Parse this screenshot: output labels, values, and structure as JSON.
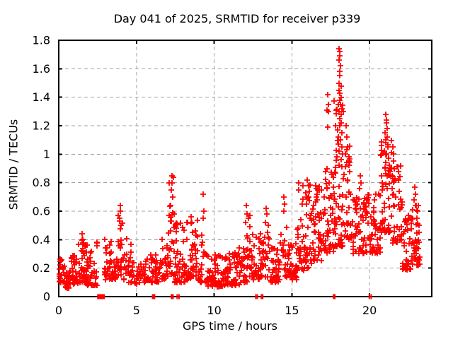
{
  "chart_data": {
    "type": "scatter",
    "title": "Day 041 of 2025, SRMTID for receiver p339",
    "xlabel": "GPS time / hours",
    "ylabel": "SRMTID / TECUs",
    "xlim": [
      0,
      24
    ],
    "ylim": [
      0,
      1.8
    ],
    "xticks": [
      0,
      5,
      10,
      15,
      20
    ],
    "xtick_labels": [
      "0",
      "5",
      "10",
      "15",
      "20"
    ],
    "yticks": [
      0,
      0.2,
      0.4,
      0.6,
      0.8,
      1.0,
      1.2,
      1.4,
      1.6,
      1.8
    ],
    "ytick_labels": [
      "0",
      "0.2",
      "0.4",
      "0.6",
      "0.8",
      "1",
      "1.2",
      "1.4",
      "1.6",
      "1.8"
    ],
    "grid": true,
    "legend": false,
    "marker": "plus",
    "marker_color": "#ff0000",
    "grid_color": "#a0a0a0",
    "axis_color": "#000000",
    "series_name": "SRMTID",
    "seed": 20250041,
    "outlier_points": [
      [
        1.52,
        0.44
      ],
      [
        1.55,
        0.4
      ],
      [
        3.95,
        0.64
      ],
      [
        3.97,
        0.6
      ],
      [
        3.92,
        0.55
      ],
      [
        4.02,
        0.5
      ],
      [
        7.28,
        0.85
      ],
      [
        7.36,
        0.84
      ],
      [
        7.3,
        0.8
      ],
      [
        7.25,
        0.75
      ],
      [
        7.33,
        0.7
      ],
      [
        7.2,
        0.64
      ],
      [
        8.52,
        0.56
      ],
      [
        8.56,
        0.52
      ],
      [
        9.3,
        0.72
      ],
      [
        9.33,
        0.6
      ],
      [
        9.27,
        0.55
      ],
      [
        12.05,
        0.64
      ],
      [
        12.1,
        0.58
      ],
      [
        12.0,
        0.52
      ],
      [
        13.35,
        0.62
      ],
      [
        13.38,
        0.58
      ],
      [
        13.3,
        0.52
      ],
      [
        14.5,
        0.7
      ],
      [
        14.53,
        0.65
      ],
      [
        14.47,
        0.6
      ],
      [
        15.45,
        0.8
      ],
      [
        15.42,
        0.75
      ],
      [
        16.0,
        0.82
      ],
      [
        16.06,
        0.78
      ],
      [
        16.12,
        0.74
      ],
      [
        15.95,
        0.7
      ],
      [
        16.55,
        0.78
      ],
      [
        16.6,
        0.72
      ],
      [
        17.3,
        1.42
      ],
      [
        17.34,
        1.35
      ],
      [
        17.27,
        1.31
      ],
      [
        17.36,
        1.3
      ],
      [
        17.32,
        1.19
      ],
      [
        18.05,
        1.74
      ],
      [
        18.08,
        1.72
      ],
      [
        18.1,
        1.69
      ],
      [
        18.04,
        1.66
      ],
      [
        18.12,
        1.62
      ],
      [
        18.07,
        1.58
      ],
      [
        18.1,
        1.55
      ],
      [
        18.05,
        1.5
      ],
      [
        18.15,
        1.48
      ],
      [
        18.02,
        1.45
      ],
      [
        18.1,
        1.43
      ],
      [
        18.18,
        1.4
      ],
      [
        18.06,
        1.38
      ],
      [
        18.12,
        1.35
      ],
      [
        18.2,
        1.32
      ],
      [
        18.03,
        1.3
      ],
      [
        18.15,
        1.28
      ],
      [
        18.08,
        1.25
      ],
      [
        18.18,
        1.22
      ],
      [
        18.1,
        1.2
      ],
      [
        17.95,
        1.17
      ],
      [
        18.22,
        1.15
      ],
      [
        18.0,
        1.12
      ],
      [
        18.14,
        1.1
      ],
      [
        17.97,
        1.07
      ],
      [
        18.2,
        1.05
      ],
      [
        18.05,
        1.02
      ],
      [
        18.25,
        1.0
      ],
      [
        17.92,
        0.98
      ],
      [
        18.16,
        0.96
      ],
      [
        18.5,
        1.2
      ],
      [
        18.55,
        1.12
      ],
      [
        18.6,
        1.05
      ],
      [
        18.45,
        1.0
      ],
      [
        18.65,
        0.95
      ],
      [
        18.7,
        0.88
      ],
      [
        19.4,
        0.85
      ],
      [
        19.45,
        0.8
      ],
      [
        19.37,
        0.76
      ],
      [
        20.75,
        0.85
      ],
      [
        20.8,
        0.8
      ],
      [
        21.05,
        1.28
      ],
      [
        21.1,
        1.24
      ],
      [
        21.08,
        1.22
      ],
      [
        21.15,
        1.18
      ],
      [
        21.0,
        1.15
      ],
      [
        21.12,
        1.12
      ],
      [
        21.05,
        1.08
      ],
      [
        21.18,
        1.05
      ],
      [
        20.95,
        1.02
      ],
      [
        21.1,
        1.0
      ],
      [
        21.2,
        0.97
      ],
      [
        21.02,
        0.94
      ],
      [
        21.25,
        0.92
      ],
      [
        21.3,
        0.88
      ],
      [
        21.5,
        1.05
      ],
      [
        21.55,
        1.0
      ],
      [
        21.52,
        0.95
      ],
      [
        21.6,
        0.9
      ],
      [
        22.9,
        0.77
      ],
      [
        22.95,
        0.72
      ],
      [
        22.85,
        0.68
      ],
      [
        23.0,
        0.64
      ],
      [
        23.1,
        0.6
      ]
    ],
    "density_clusters": [
      [
        0.0,
        0.35,
        0.1,
        0.28,
        22,
        1.5
      ],
      [
        0.35,
        0.8,
        0.06,
        0.2,
        28,
        1.4
      ],
      [
        0.8,
        1.25,
        0.09,
        0.3,
        32,
        1.6
      ],
      [
        1.25,
        1.8,
        0.1,
        0.4,
        40,
        1.8
      ],
      [
        1.8,
        2.5,
        0.08,
        0.38,
        40,
        1.9
      ],
      [
        2.95,
        3.4,
        0.12,
        0.42,
        30,
        1.7
      ],
      [
        3.4,
        3.8,
        0.12,
        0.28,
        18,
        1.5
      ],
      [
        3.8,
        4.15,
        0.15,
        0.58,
        22,
        1.7
      ],
      [
        4.15,
        4.7,
        0.1,
        0.42,
        25,
        2.0
      ],
      [
        4.7,
        5.6,
        0.09,
        0.24,
        32,
        1.3
      ],
      [
        5.6,
        6.6,
        0.1,
        0.3,
        45,
        1.7
      ],
      [
        6.6,
        7.05,
        0.12,
        0.45,
        25,
        1.7
      ],
      [
        7.05,
        7.45,
        0.15,
        0.8,
        30,
        2.1
      ],
      [
        7.45,
        8.2,
        0.1,
        0.52,
        50,
        2.0
      ],
      [
        8.2,
        9.0,
        0.12,
        0.55,
        48,
        2.0
      ],
      [
        9.0,
        9.6,
        0.1,
        0.45,
        26,
        1.8
      ],
      [
        9.6,
        10.6,
        0.07,
        0.3,
        58,
        1.6
      ],
      [
        10.6,
        11.6,
        0.08,
        0.32,
        58,
        1.6
      ],
      [
        11.6,
        12.1,
        0.1,
        0.35,
        30,
        1.6
      ],
      [
        12.1,
        12.45,
        0.14,
        0.58,
        22,
        1.7
      ],
      [
        12.45,
        13.0,
        0.12,
        0.45,
        30,
        1.8
      ],
      [
        13.0,
        13.6,
        0.14,
        0.6,
        30,
        1.9
      ],
      [
        13.6,
        14.3,
        0.1,
        0.38,
        36,
        1.6
      ],
      [
        14.3,
        14.85,
        0.14,
        0.55,
        26,
        1.8
      ],
      [
        14.85,
        15.3,
        0.12,
        0.4,
        28,
        1.6
      ],
      [
        15.3,
        15.75,
        0.18,
        0.78,
        26,
        1.8
      ],
      [
        15.75,
        16.25,
        0.2,
        0.8,
        35,
        1.8
      ],
      [
        16.25,
        17.0,
        0.25,
        0.78,
        48,
        1.5
      ],
      [
        17.0,
        17.7,
        0.3,
        0.92,
        48,
        1.5
      ],
      [
        17.7,
        18.35,
        0.35,
        1.4,
        55,
        1.8
      ],
      [
        18.35,
        18.9,
        0.4,
        1.1,
        30,
        1.5
      ],
      [
        18.9,
        19.9,
        0.3,
        0.7,
        58,
        1.5
      ],
      [
        19.9,
        20.7,
        0.3,
        0.72,
        48,
        1.5
      ],
      [
        20.7,
        21.45,
        0.45,
        1.12,
        52,
        1.4
      ],
      [
        21.45,
        22.1,
        0.35,
        0.92,
        45,
        1.6
      ],
      [
        22.1,
        22.7,
        0.18,
        0.58,
        42,
        1.5
      ],
      [
        22.7,
        23.25,
        0.22,
        0.65,
        40,
        1.5
      ]
    ],
    "zero_markers": [
      [
        2.72,
        0.5
      ],
      [
        6.1,
        0.22
      ],
      [
        7.3,
        0.2
      ],
      [
        7.62,
        0.07
      ],
      [
        7.74,
        0.07
      ],
      [
        12.68,
        0.07
      ],
      [
        12.78,
        0.07
      ],
      [
        13.08,
        0.18
      ],
      [
        17.72,
        0.18
      ],
      [
        19.98,
        0.07
      ],
      [
        20.1,
        0.07
      ]
    ]
  }
}
